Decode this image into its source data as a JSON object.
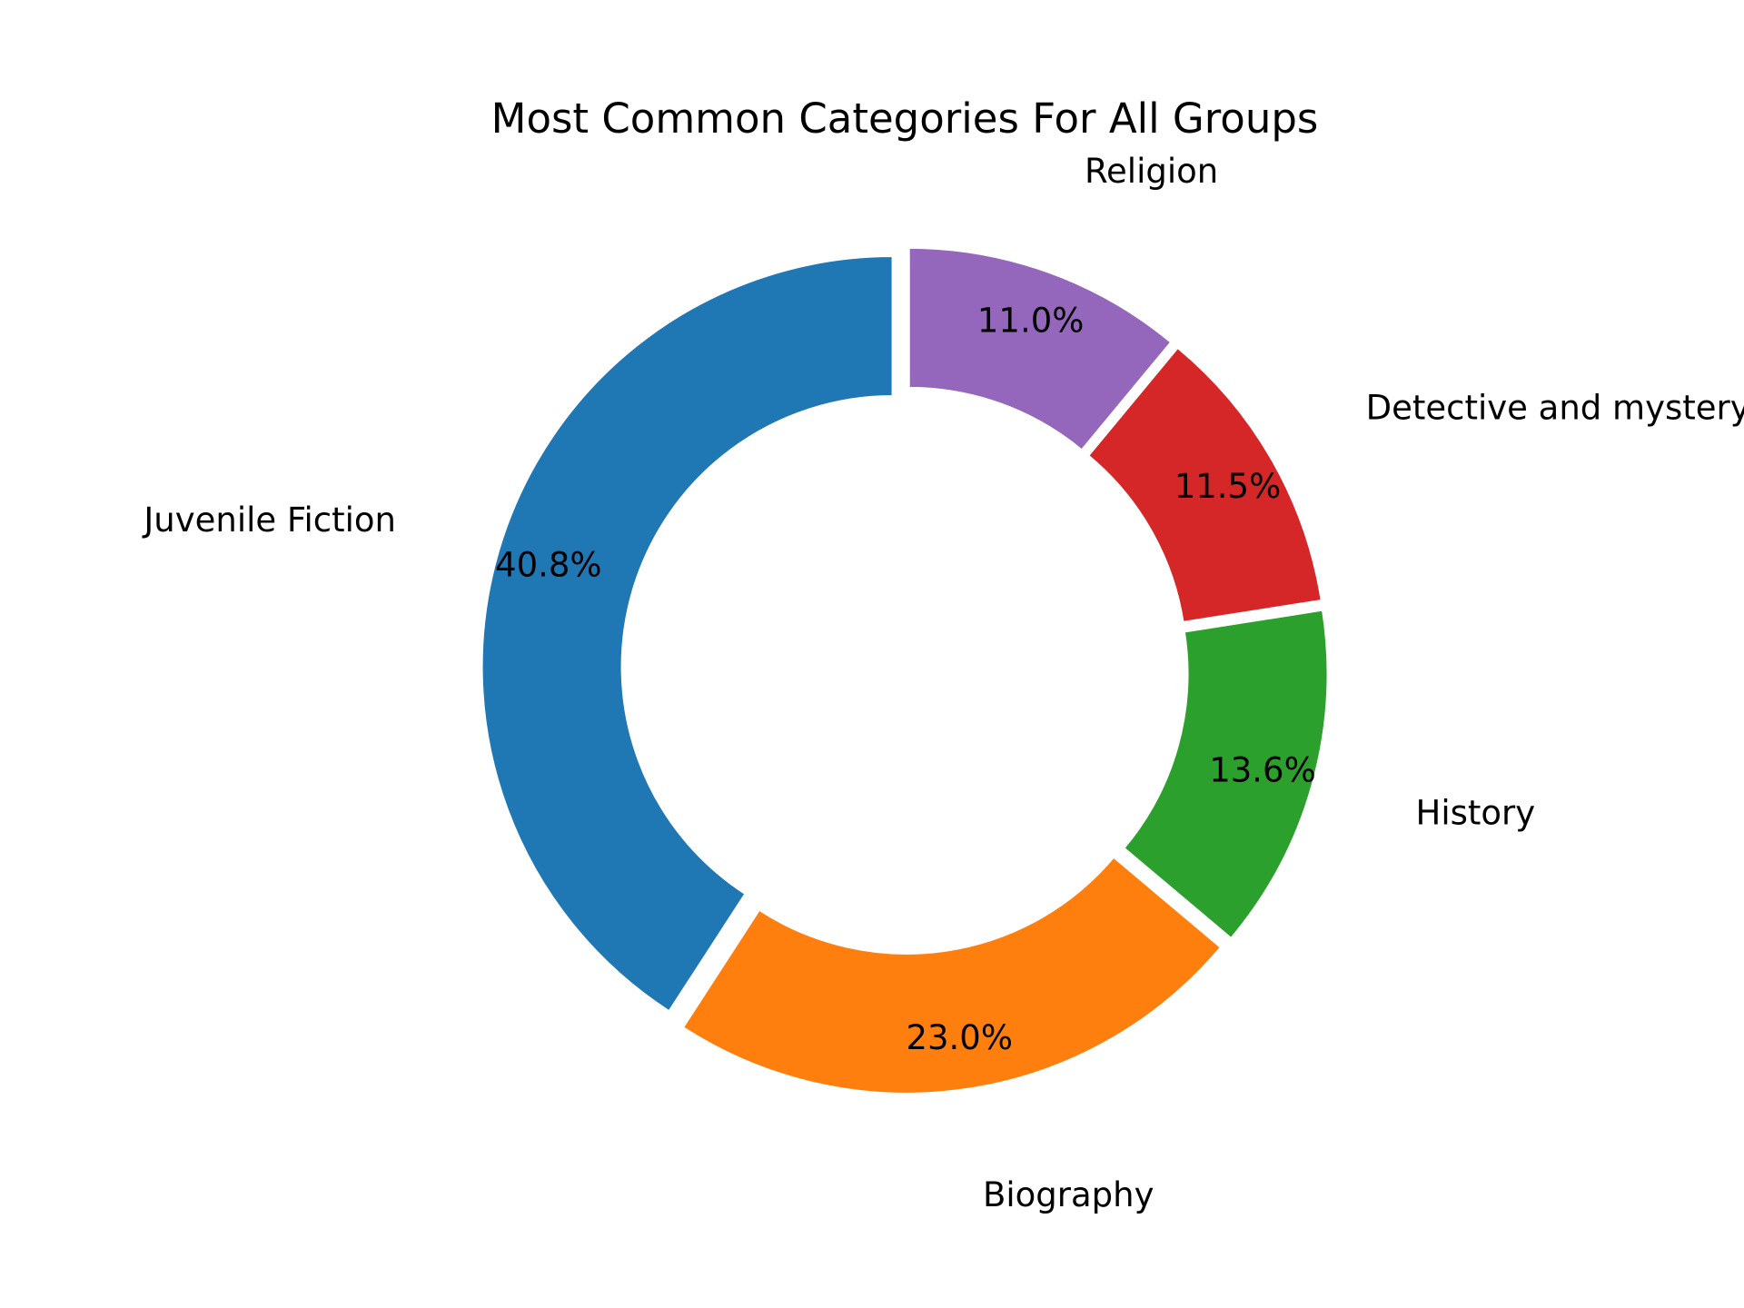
{
  "chart_data": {
    "type": "pie",
    "style": "donut",
    "title": "Most Common Categories For All Groups",
    "categories": [
      "Juvenile Fiction",
      "Biography",
      "History",
      "Detective and mystery",
      "Religion"
    ],
    "values": [
      40.8,
      23.0,
      13.6,
      11.5,
      11.0
    ],
    "value_labels": [
      "40.8%",
      "23.0%",
      "13.6%",
      "11.5%",
      "11.0%"
    ],
    "unit": "%",
    "colors": [
      "#1f77b4",
      "#ff7f0e",
      "#2ca02c",
      "#d62728",
      "#9467bd"
    ],
    "start_angle_deg": 90,
    "direction": "counterclockwise",
    "legend": "none"
  }
}
